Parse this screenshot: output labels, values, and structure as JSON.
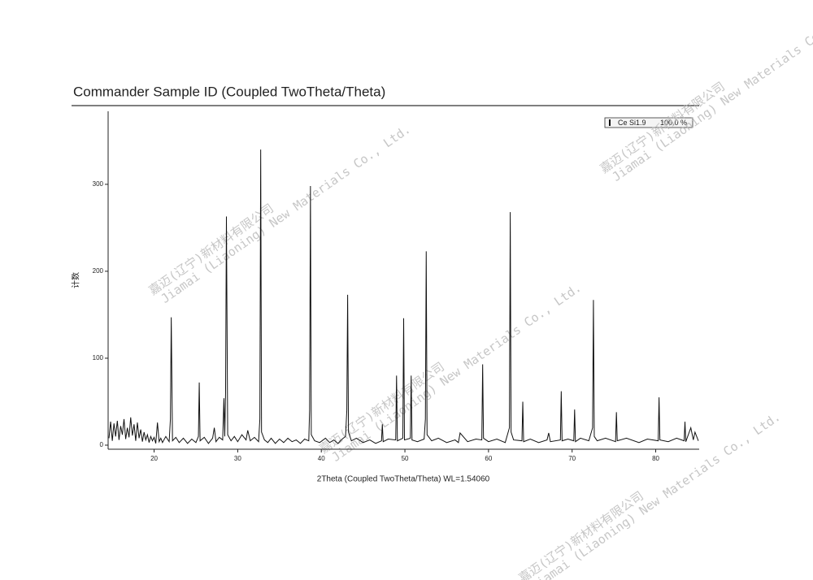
{
  "chart_data": {
    "type": "line",
    "title": "Commander Sample ID (Coupled TwoTheta/Theta)",
    "xlabel": "2Theta (Coupled TwoTheta/Theta) WL=1.54060",
    "ylabel": "计数",
    "legend_percent": "100.0 %",
    "watermark": [
      "嘉迈(辽宁)新材料有限公司",
      "Jiamai (Liaoning) New Materials Co., Ltd."
    ],
    "xlim": [
      14.5,
      85.2
    ],
    "ylim": [
      0,
      384
    ],
    "xticks": [
      20,
      30,
      40,
      50,
      60,
      70,
      80
    ],
    "yticks": [
      0,
      100,
      200,
      300
    ],
    "x": [
      14.6,
      14.8,
      15.0,
      15.2,
      15.4,
      15.6,
      15.8,
      16.0,
      16.2,
      16.4,
      16.6,
      16.8,
      17.0,
      17.2,
      17.4,
      17.6,
      17.8,
      18.0,
      18.2,
      18.4,
      18.6,
      18.8,
      19.0,
      19.2,
      19.4,
      19.6,
      19.8,
      20.0,
      20.2,
      20.4,
      20.6,
      20.8,
      21.0,
      21.4,
      21.8,
      21.95,
      22.05,
      22.2,
      22.6,
      23.0,
      23.5,
      24.0,
      24.5,
      25.0,
      25.3,
      25.4,
      25.5,
      26.0,
      26.5,
      27.0,
      27.2,
      27.4,
      27.8,
      28.2,
      28.35,
      28.45,
      28.55,
      28.65,
      28.8,
      29.2,
      29.6,
      30.0,
      30.5,
      31.0,
      31.2,
      31.5,
      32.0,
      32.5,
      32.65,
      32.75,
      32.85,
      33.2,
      33.6,
      34.0,
      34.5,
      35.0,
      35.5,
      36.0,
      36.5,
      37.0,
      37.5,
      38.0,
      38.5,
      38.6,
      38.7,
      38.8,
      39.2,
      39.8,
      40.5,
      41.0,
      41.5,
      42.0,
      42.5,
      42.9,
      43.05,
      43.15,
      43.25,
      43.6,
      44.2,
      45.0,
      45.8,
      46.5,
      47.2,
      47.3,
      47.4,
      48.0,
      48.9,
      49.0,
      49.1,
      49.75,
      49.85,
      49.95,
      50.65,
      50.75,
      50.85,
      51.5,
      52.3,
      52.45,
      52.55,
      52.65,
      53.2,
      54.0,
      55.0,
      56.0,
      56.4,
      56.6,
      57.5,
      58.5,
      59.2,
      59.3,
      59.4,
      60.0,
      61.0,
      62.0,
      62.5,
      62.6,
      62.7,
      63.0,
      64.0,
      64.1,
      64.2,
      65.0,
      66.0,
      67.0,
      67.2,
      67.4,
      68.6,
      68.7,
      68.8,
      69.5,
      70.2,
      70.3,
      70.4,
      71.0,
      72.0,
      72.45,
      72.55,
      72.65,
      73.0,
      74.0,
      75.2,
      75.3,
      75.4,
      76.5,
      78.0,
      79.0,
      80.3,
      80.4,
      80.5,
      81.5,
      82.5,
      83.4,
      83.5,
      83.6,
      84.2,
      84.5,
      84.7,
      85.1
    ],
    "series": [
      {
        "name": "Ce Si1.9",
        "color": "#111111",
        "values": [
          8,
          27,
          5,
          25,
          10,
          28,
          6,
          22,
          12,
          30,
          7,
          20,
          9,
          32,
          11,
          24,
          5,
          26,
          8,
          18,
          4,
          15,
          6,
          12,
          3,
          10,
          5,
          9,
          2,
          26,
          4,
          8,
          3,
          10,
          4,
          30,
          147,
          5,
          9,
          3,
          8,
          2,
          7,
          3,
          10,
          72,
          5,
          9,
          2,
          8,
          20,
          4,
          9,
          6,
          54,
          10,
          60,
          263,
          12,
          5,
          10,
          4,
          12,
          6,
          17,
          5,
          9,
          4,
          30,
          340,
          15,
          6,
          3,
          8,
          2,
          7,
          3,
          8,
          4,
          6,
          2,
          7,
          5,
          40,
          298,
          12,
          5,
          3,
          8,
          3,
          6,
          2,
          7,
          10,
          40,
          173,
          15,
          5,
          8,
          3,
          6,
          2,
          5,
          24,
          4,
          7,
          6,
          80,
          5,
          8,
          146,
          6,
          8,
          80,
          6,
          4,
          7,
          30,
          223,
          12,
          5,
          8,
          3,
          6,
          3,
          14,
          4,
          7,
          6,
          93,
          8,
          4,
          7,
          3,
          20,
          268,
          15,
          6,
          5,
          50,
          4,
          7,
          3,
          6,
          14,
          4,
          6,
          62,
          5,
          7,
          5,
          41,
          4,
          8,
          5,
          20,
          167,
          10,
          5,
          8,
          4,
          38,
          5,
          8,
          3,
          7,
          5,
          55,
          6,
          4,
          8,
          5,
          27,
          4,
          20,
          6,
          15,
          5
        ]
      }
    ]
  }
}
